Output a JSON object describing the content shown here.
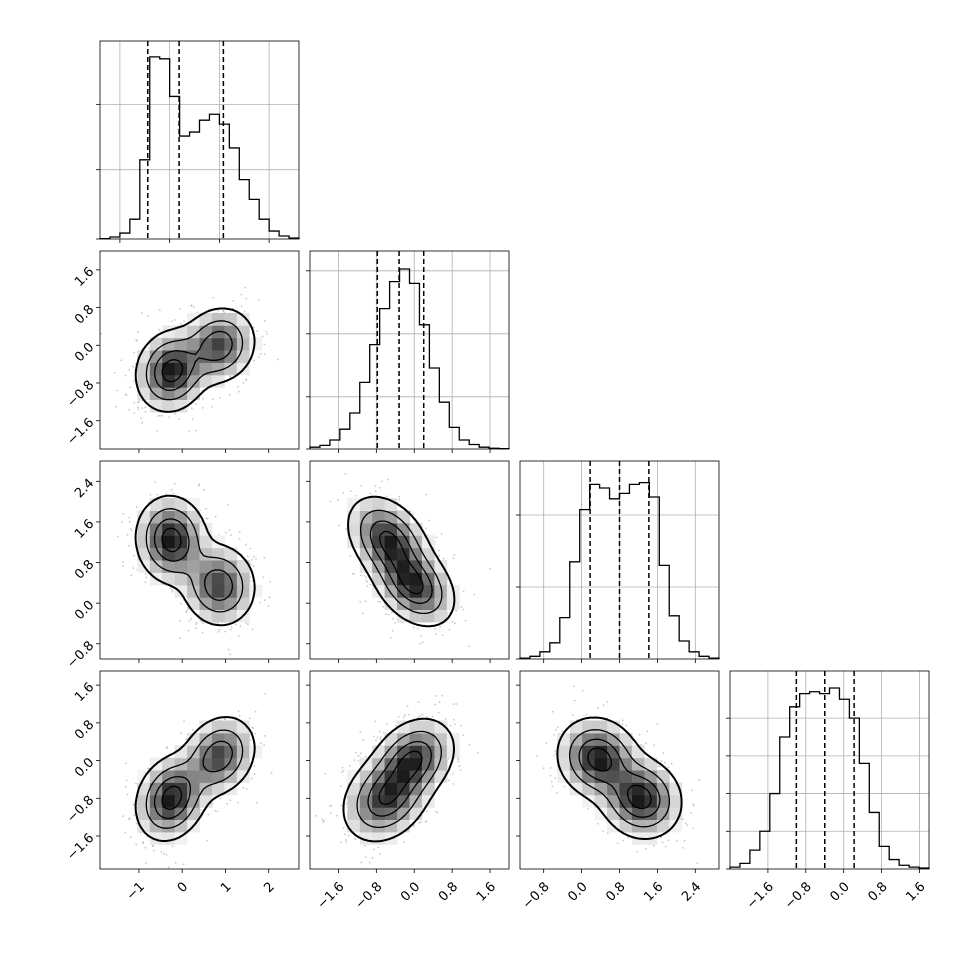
{
  "chart_data": {
    "type": "corner",
    "description_free": true,
    "n_params": 4,
    "grid": true,
    "params": [
      {
        "hist_values": [
          0.002,
          0.01,
          0.03,
          0.1,
          0.4,
          0.92,
          0.91,
          0.72,
          0.52,
          0.54,
          0.6,
          0.63,
          0.58,
          0.46,
          0.3,
          0.2,
          0.1,
          0.04,
          0.015,
          0.005
        ],
        "hist_range": [
          -1.4,
          2.6
        ],
        "quantiles": [
          -0.44,
          0.19,
          1.08
        ],
        "hist_ylim": [
          0,
          1.0
        ],
        "ticks": [
          -1,
          0,
          1,
          2
        ],
        "tick_labels": [
          "−1",
          "0",
          "1",
          "2"
        ],
        "hist_gridlines": [
          0.35,
          0.68
        ]
      },
      {
        "hist_values": [
          0.01,
          0.02,
          0.05,
          0.11,
          0.2,
          0.37,
          0.58,
          0.78,
          0.93,
          1.0,
          0.92,
          0.69,
          0.45,
          0.26,
          0.12,
          0.05,
          0.025,
          0.01,
          0.004,
          0.002
        ],
        "hist_range": [
          -2.2,
          2.0
        ],
        "quantiles": [
          -0.78,
          -0.32,
          0.2
        ],
        "hist_ylim": [
          0,
          1.1
        ],
        "ticks": [
          -1.6,
          -0.8,
          0.0,
          0.8,
          1.6
        ],
        "tick_labels": [
          "−1.6",
          "−0.8",
          "0.0",
          "0.8",
          "1.6"
        ],
        "hist_gridlines": [
          0.29,
          0.64,
          0.99
        ]
      },
      {
        "hist_values": [
          0.005,
          0.015,
          0.04,
          0.09,
          0.23,
          0.54,
          0.83,
          0.97,
          0.95,
          0.89,
          0.92,
          0.97,
          0.98,
          0.9,
          0.52,
          0.24,
          0.1,
          0.04,
          0.015,
          0.005
        ],
        "hist_range": [
          -1.3,
          2.9
        ],
        "quantiles": [
          0.18,
          0.8,
          1.42
        ],
        "hist_ylim": [
          0,
          1.1
        ],
        "ticks": [
          -0.8,
          0.0,
          0.8,
          1.6,
          2.4
        ],
        "tick_labels": [
          "−0.8",
          "0.0",
          "0.8",
          "1.6",
          "2.4"
        ],
        "hist_gridlines": [
          0.4,
          0.8
        ]
      },
      {
        "hist_values": [
          0.01,
          0.03,
          0.1,
          0.2,
          0.4,
          0.7,
          0.86,
          0.93,
          0.94,
          0.93,
          0.96,
          0.9,
          0.8,
          0.56,
          0.3,
          0.12,
          0.05,
          0.02,
          0.01,
          0.005
        ],
        "hist_range": [
          -2.4,
          1.8
        ],
        "quantiles": [
          -1.0,
          -0.4,
          0.22
        ],
        "hist_ylim": [
          0,
          1.05
        ],
        "ticks": [
          -1.6,
          -0.8,
          0.0,
          0.8,
          1.6
        ],
        "tick_labels": [
          "−1.6",
          "−0.8",
          "0.0",
          "0.8",
          "1.6"
        ],
        "hist_gridlines": [
          0.2,
          0.4,
          0.6,
          0.8
        ]
      }
    ],
    "pairs": [
      {
        "row": 1,
        "col": 0,
        "xlim": [
          -1.9,
          2.7
        ],
        "ylim": [
          -2.2,
          2.0
        ],
        "modes": [
          {
            "x": -0.25,
            "y": -0.55,
            "sx": 0.4,
            "sy": 0.42,
            "rho": 0.1,
            "w": 0.55
          },
          {
            "x": 0.85,
            "y": 0.0,
            "sx": 0.42,
            "sy": 0.4,
            "rho": 0.1,
            "w": 0.45
          }
        ]
      },
      {
        "row": 2,
        "col": 0,
        "xlim": [
          -1.9,
          2.7
        ],
        "ylim": [
          -1.1,
          2.8
        ],
        "modes": [
          {
            "x": -0.25,
            "y": 1.25,
            "sx": 0.4,
            "sy": 0.42,
            "rho": -0.05,
            "w": 0.55
          },
          {
            "x": 0.85,
            "y": 0.35,
            "sx": 0.42,
            "sy": 0.4,
            "rho": -0.05,
            "w": 0.45
          }
        ]
      },
      {
        "row": 2,
        "col": 1,
        "xlim": [
          -2.2,
          2.0
        ],
        "ylim": [
          -1.1,
          2.8
        ],
        "modes": [
          {
            "x": -0.55,
            "y": 1.25,
            "sx": 0.42,
            "sy": 0.42,
            "rho": -0.35,
            "w": 0.5
          },
          {
            "x": 0.0,
            "y": 0.35,
            "sx": 0.42,
            "sy": 0.4,
            "rho": -0.35,
            "w": 0.5
          }
        ]
      },
      {
        "row": 3,
        "col": 0,
        "xlim": [
          -1.9,
          2.7
        ],
        "ylim": [
          -2.3,
          1.9
        ],
        "modes": [
          {
            "x": -0.25,
            "y": -0.8,
            "sx": 0.4,
            "sy": 0.44,
            "rho": 0.2,
            "w": 0.55
          },
          {
            "x": 0.85,
            "y": 0.1,
            "sx": 0.42,
            "sy": 0.42,
            "rho": 0.2,
            "w": 0.45
          }
        ]
      },
      {
        "row": 3,
        "col": 1,
        "xlim": [
          -2.2,
          2.0
        ],
        "ylim": [
          -2.3,
          1.9
        ],
        "modes": [
          {
            "x": -0.6,
            "y": -0.8,
            "sx": 0.45,
            "sy": 0.46,
            "rho": 0.25,
            "w": 0.5
          },
          {
            "x": 0.0,
            "y": 0.05,
            "sx": 0.42,
            "sy": 0.42,
            "rho": 0.25,
            "w": 0.5
          }
        ]
      },
      {
        "row": 3,
        "col": 2,
        "xlim": [
          -1.3,
          2.9
        ],
        "ylim": [
          -2.3,
          1.9
        ],
        "modes": [
          {
            "x": 0.35,
            "y": 0.05,
            "sx": 0.42,
            "sy": 0.42,
            "rho": -0.1,
            "w": 0.5
          },
          {
            "x": 1.25,
            "y": -0.8,
            "sx": 0.42,
            "sy": 0.42,
            "rho": -0.1,
            "w": 0.5
          }
        ]
      }
    ]
  }
}
